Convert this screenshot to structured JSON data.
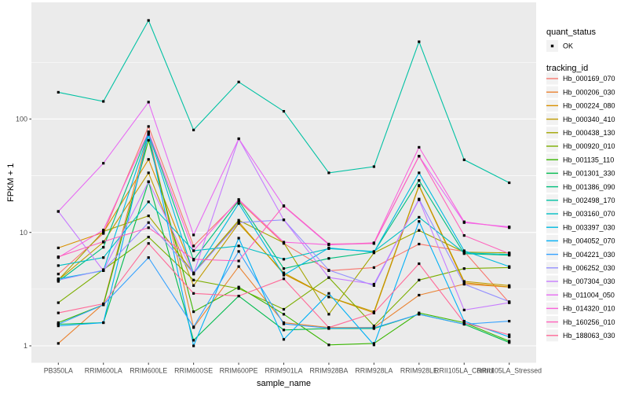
{
  "legend": {
    "quant_status_title": "quant_status",
    "quant_status_items": [
      {
        "label": "OK",
        "marker": "black-point"
      }
    ],
    "tracking_id_title": "tracking_id"
  },
  "chart_data": {
    "type": "line",
    "title": "",
    "xlabel": "sample_name",
    "ylabel": "FPKM + 1",
    "y_scale": "log10",
    "y_major_ticks": [
      1,
      10,
      100
    ],
    "y_minor_gridlines": [
      3.162,
      31.62,
      316.2
    ],
    "ylim": [
      0.71,
      1070
    ],
    "grid": true,
    "legend_position": "right",
    "panel_bg": "#EBEBEB",
    "grid_color": "#FFFFFF",
    "tick_label_color": "#4D4D4D",
    "point_color": "#000000",
    "point_shape": "square",
    "categories": [
      "PB350LA",
      "RRIM600LA",
      "RRIM600LE",
      "RRIM600SE",
      "RRIM600PE",
      "RRIM901LA",
      "RRIM928BA",
      "RRIM928LA",
      "RRIM928LE",
      "RRII105LA_Control",
      "RRII105LA_Stressed"
    ],
    "series": [
      {
        "name": "Hb_000169_070",
        "color": "#F8766D",
        "values": [
          4.3,
          9.8,
          86,
          7.6,
          19,
          8.0,
          4.6,
          4.9,
          7.9,
          6.8,
          2.4
        ]
      },
      {
        "name": "Hb_000206_030",
        "color": "#EA8331",
        "values": [
          1.05,
          2.35,
          75,
          1.45,
          5.0,
          1.6,
          1.45,
          1.45,
          2.8,
          3.5,
          3.3
        ]
      },
      {
        "name": "Hb_000224_080",
        "color": "#D89000",
        "values": [
          7.3,
          10.0,
          44,
          4.4,
          12.4,
          4.3,
          2.7,
          1.95,
          25.7,
          3.6,
          3.3
        ]
      },
      {
        "name": "Hb_000340_410",
        "color": "#C09B00",
        "values": [
          3.8,
          8.2,
          33.5,
          3.4,
          12.0,
          4.4,
          2.7,
          2.0,
          26,
          3.7,
          3.4
        ]
      },
      {
        "name": "Hb_000438_130",
        "color": "#A3A500",
        "values": [
          3.8,
          10.2,
          14,
          4.4,
          12.8,
          8.1,
          1.9,
          6.6,
          10.4,
          6.7,
          6.6
        ]
      },
      {
        "name": "Hb_000920_010",
        "color": "#7CAE00",
        "values": [
          2.4,
          4.7,
          9.1,
          3.8,
          3.2,
          2.1,
          4.0,
          1.5,
          3.8,
          4.8,
          4.9
        ]
      },
      {
        "name": "Hb_001135_110",
        "color": "#39B600",
        "values": [
          1.6,
          2.3,
          65,
          2.0,
          3.3,
          1.9,
          1.02,
          1.05,
          1.95,
          1.6,
          1.1
        ]
      },
      {
        "name": "Hb_001301_330",
        "color": "#00BB4E",
        "values": [
          1.55,
          1.6,
          28,
          1.12,
          2.75,
          1.38,
          1.42,
          1.42,
          1.9,
          1.55,
          1.07
        ]
      },
      {
        "name": "Hb_001386_090",
        "color": "#00BF7D",
        "values": [
          3.7,
          7.4,
          77,
          5.7,
          19,
          4.8,
          5.9,
          6.7,
          28.7,
          6.5,
          6.3
        ]
      },
      {
        "name": "Hb_002498_170",
        "color": "#00C1A3",
        "values": [
          172,
          143,
          740,
          80,
          212,
          117,
          33.5,
          38,
          480,
          43.7,
          27.4
        ]
      },
      {
        "name": "Hb_003160_070",
        "color": "#00BFC4",
        "values": [
          5.1,
          6.0,
          18.6,
          6.9,
          7.6,
          5.8,
          7.2,
          6.8,
          13.6,
          6.6,
          6.4
        ]
      },
      {
        "name": "Hb_003397_030",
        "color": "#00BAE0",
        "values": [
          3.9,
          4.6,
          75,
          4.3,
          18,
          4.2,
          7.3,
          6.7,
          33.5,
          6.9,
          5.0
        ]
      },
      {
        "name": "Hb_004052_070",
        "color": "#00B0F6",
        "values": [
          1.5,
          1.6,
          73,
          1.0,
          8.9,
          1.14,
          2.9,
          1.02,
          12.5,
          1.65,
          1.2
        ]
      },
      {
        "name": "Hb_004221_030",
        "color": "#35A2FF",
        "values": [
          1.55,
          2.3,
          6.0,
          1.47,
          6.8,
          1.56,
          1.43,
          1.44,
          1.9,
          1.55,
          1.65
        ]
      },
      {
        "name": "Hb_006252_030",
        "color": "#9590FF",
        "values": [
          3.8,
          4.65,
          12.2,
          4.35,
          12.2,
          12.9,
          4.65,
          3.4,
          19.7,
          3.5,
          2.45
        ]
      },
      {
        "name": "Hb_007304_030",
        "color": "#C77CFF",
        "values": [
          15.3,
          4.6,
          28,
          4.3,
          67,
          12.9,
          4.0,
          3.5,
          19.4,
          2.07,
          2.4
        ]
      },
      {
        "name": "Hb_011004_050",
        "color": "#E76BF3",
        "values": [
          15.3,
          40.7,
          141,
          9.5,
          67,
          17.0,
          7.8,
          8.0,
          47,
          12.2,
          11.2
        ]
      },
      {
        "name": "Hb_014320_010",
        "color": "#FA62DB",
        "values": [
          6.0,
          10.5,
          77,
          6.9,
          19.5,
          8.2,
          7.8,
          8.1,
          56.3,
          12.4,
          11.0
        ]
      },
      {
        "name": "Hb_160256_010",
        "color": "#FF62BC",
        "values": [
          6.1,
          8.3,
          11,
          5.8,
          5.6,
          17.2,
          7.9,
          8.0,
          47,
          9.4,
          6.5
        ]
      },
      {
        "name": "Hb_188063_030",
        "color": "#FF6A98",
        "values": [
          1.95,
          2.35,
          8.0,
          2.9,
          2.75,
          3.9,
          1.45,
          1.95,
          5.3,
          1.6,
          1.25
        ]
      }
    ]
  }
}
